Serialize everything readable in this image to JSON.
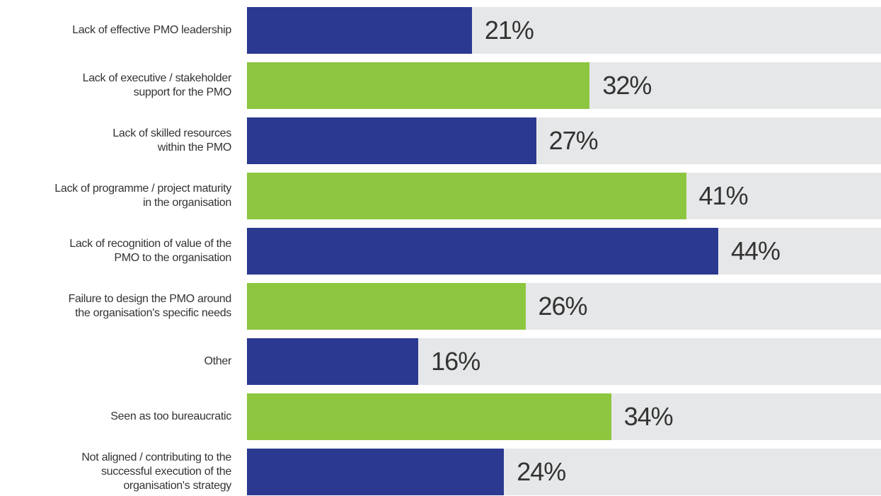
{
  "chart_data": {
    "type": "barh",
    "categories": [
      "Lack of effective PMO leadership",
      "Lack of executive / stakeholder\nsupport for the PMO",
      "Lack of skilled resources\nwithin the PMO",
      "Lack of programme / project maturity\nin the organisation",
      "Lack of recognition of value of the\nPMO to the organisation",
      "Failure to design the PMO around\nthe organisation's specific needs",
      "Other",
      "Seen as too bureaucratic",
      "Not aligned / contributing to the\nsuccessful execution of the\norganisation's strategy"
    ],
    "values": [
      21,
      32,
      27,
      41,
      44,
      26,
      16,
      34,
      24
    ],
    "value_labels": [
      "21%",
      "32%",
      "27%",
      "41%",
      "44%",
      "26%",
      "16%",
      "34%",
      "24%"
    ],
    "colors": [
      "#2b3990",
      "#8dc63f",
      "#2b3990",
      "#8dc63f",
      "#2b3990",
      "#8dc63f",
      "#2b3990",
      "#8dc63f",
      "#2b3990"
    ],
    "xlim": [
      0,
      59.2
    ]
  }
}
